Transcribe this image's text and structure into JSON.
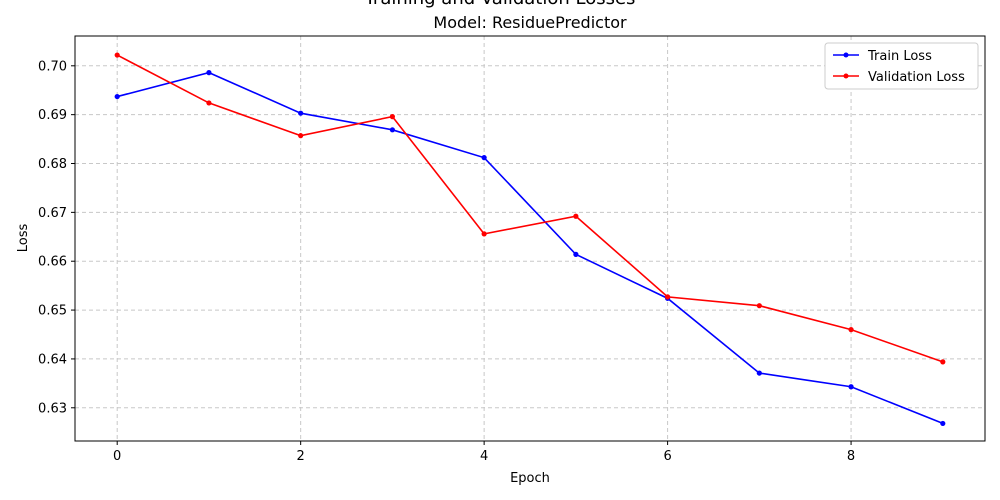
{
  "chart_data": {
    "type": "line",
    "title": "Training and Validation Losses",
    "subtitle": "Model: ResiduePredictor",
    "xlabel": "Epoch",
    "ylabel": "Loss",
    "x": [
      0,
      1,
      2,
      3,
      4,
      5,
      6,
      7,
      8,
      9
    ],
    "xlim": [
      -0.46,
      9.46
    ],
    "ylim": [
      0.6232,
      0.7061
    ],
    "xticks": [
      "0",
      "2",
      "4",
      "6",
      "8"
    ],
    "yticks": [
      "0.63",
      "0.64",
      "0.65",
      "0.66",
      "0.67",
      "0.68",
      "0.69",
      "0.70"
    ],
    "grid": true,
    "legend_position": "top-right",
    "series": [
      {
        "name": "Train Loss",
        "color": "#0000ff",
        "values": [
          0.6937,
          0.6986,
          0.6903,
          0.6869,
          0.6812,
          0.6614,
          0.6524,
          0.6371,
          0.6343,
          0.6268
        ]
      },
      {
        "name": "Validation Loss",
        "color": "#ff0000",
        "values": [
          0.7022,
          0.6924,
          0.6857,
          0.6896,
          0.6656,
          0.6692,
          0.6527,
          0.6509,
          0.646,
          0.6394
        ]
      }
    ]
  }
}
